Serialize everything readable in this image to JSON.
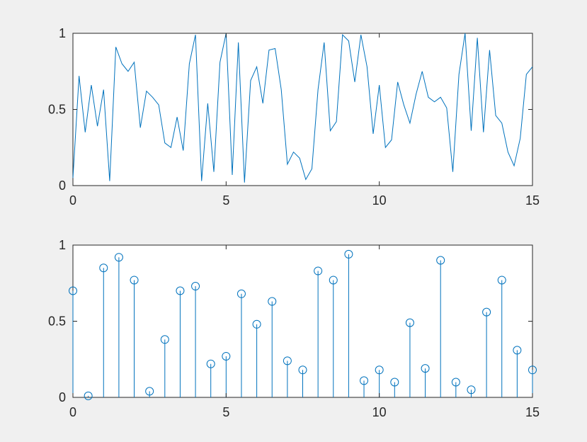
{
  "chart_data": [
    {
      "type": "line",
      "color": "#0072bd",
      "xlim": [
        0,
        15
      ],
      "ylim": [
        0,
        1
      ],
      "xticks": [
        0,
        5,
        10,
        15
      ],
      "yticks": [
        0,
        0.5,
        1
      ],
      "xtick_labels": [
        "0",
        "5",
        "10",
        "15"
      ],
      "ytick_labels": [
        "0",
        "0.5",
        "1"
      ],
      "grid": false,
      "series": [
        {
          "x": [
            0,
            0.2,
            0.4,
            0.6,
            0.8,
            1.0,
            1.2,
            1.4,
            1.6,
            1.8,
            2.0,
            2.2,
            2.4,
            2.6,
            2.8,
            3.0,
            3.2,
            3.4,
            3.6,
            3.8,
            4.0,
            4.2,
            4.4,
            4.6,
            4.8,
            5.0,
            5.2,
            5.4,
            5.6,
            5.8,
            6.0,
            6.2,
            6.4,
            6.6,
            6.8,
            7.0,
            7.2,
            7.4,
            7.6,
            7.8,
            8.0,
            8.2,
            8.4,
            8.6,
            8.8,
            9.0,
            9.2,
            9.4,
            9.6,
            9.8,
            10.0,
            10.2,
            10.4,
            10.6,
            10.8,
            11.0,
            11.2,
            11.4,
            11.6,
            11.8,
            12.0,
            12.2,
            12.4,
            12.6,
            12.8,
            13.0,
            13.2,
            13.4,
            13.6,
            13.8,
            14.0,
            14.2,
            14.4,
            14.6,
            14.8,
            15.0
          ],
          "y": [
            0.05,
            0.72,
            0.35,
            0.66,
            0.39,
            0.63,
            0.03,
            0.91,
            0.8,
            0.75,
            0.81,
            0.38,
            0.62,
            0.58,
            0.53,
            0.28,
            0.25,
            0.45,
            0.23,
            0.8,
            0.99,
            0.03,
            0.54,
            0.09,
            0.81,
            1.0,
            0.07,
            0.94,
            0.02,
            0.69,
            0.78,
            0.54,
            0.89,
            0.9,
            0.63,
            0.14,
            0.22,
            0.18,
            0.04,
            0.11,
            0.63,
            0.94,
            0.36,
            0.42,
            0.99,
            0.95,
            0.68,
            0.99,
            0.78,
            0.34,
            0.66,
            0.25,
            0.3,
            0.68,
            0.53,
            0.41,
            0.6,
            0.75,
            0.58,
            0.55,
            0.58,
            0.51,
            0.09,
            0.73,
            1.0,
            0.36,
            0.97,
            0.35,
            0.89,
            0.46,
            0.41,
            0.22,
            0.13,
            0.31,
            0.73,
            0.78
          ]
        }
      ]
    },
    {
      "type": "stem",
      "color": "#0072bd",
      "xlim": [
        0,
        15
      ],
      "ylim": [
        0,
        1
      ],
      "xticks": [
        0,
        5,
        10,
        15
      ],
      "yticks": [
        0,
        0.5,
        1
      ],
      "xtick_labels": [
        "0",
        "5",
        "10",
        "15"
      ],
      "ytick_labels": [
        "0",
        "0.5",
        "1"
      ],
      "grid": false,
      "series": [
        {
          "x": [
            0,
            0.5,
            1.0,
            1.5,
            2.0,
            2.5,
            3.0,
            3.5,
            4.0,
            4.5,
            5.0,
            5.5,
            6.0,
            6.5,
            7.0,
            7.5,
            8.0,
            8.5,
            9.0,
            9.5,
            10.0,
            10.5,
            11.0,
            11.5,
            12.0,
            12.5,
            13.0,
            13.5,
            14.0,
            14.5,
            15.0
          ],
          "y": [
            0.7,
            0.01,
            0.85,
            0.92,
            0.77,
            0.04,
            0.38,
            0.7,
            0.73,
            0.22,
            0.27,
            0.68,
            0.48,
            0.63,
            0.24,
            0.18,
            0.83,
            0.77,
            0.94,
            0.11,
            0.18,
            0.1,
            0.49,
            0.19,
            0.9,
            0.1,
            0.05,
            0.56,
            0.77,
            0.31,
            0.18
          ]
        }
      ]
    }
  ]
}
